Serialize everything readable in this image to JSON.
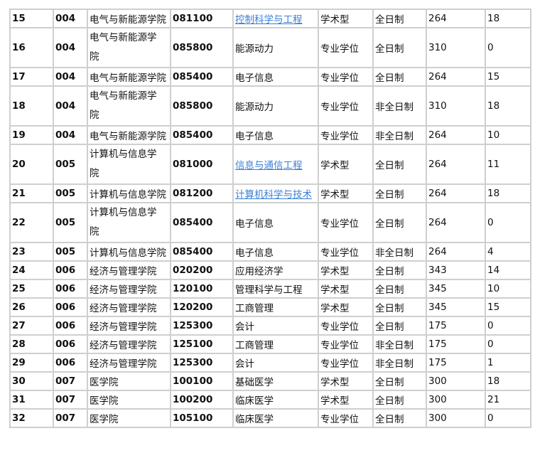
{
  "rows": [
    [
      "15",
      "004",
      "电气与新能源学院",
      "081100",
      "控制科学与工程",
      "学术型",
      "全日制",
      "264",
      "18",
      true
    ],
    [
      "16",
      "004",
      "电气与新能源学院",
      "085800",
      "能源动力",
      "专业学位",
      "全日制",
      "310",
      "0",
      false
    ],
    [
      "17",
      "004",
      "电气与新能源学院",
      "085400",
      "电子信息",
      "专业学位",
      "全日制",
      "264",
      "15",
      false
    ],
    [
      "18",
      "004",
      "电气与新能源学院",
      "085800",
      "能源动力",
      "专业学位",
      "非全日制",
      "310",
      "18",
      false
    ],
    [
      "19",
      "004",
      "电气与新能源学院",
      "085400",
      "电子信息",
      "专业学位",
      "非全日制",
      "264",
      "10",
      false
    ],
    [
      "20",
      "005",
      "计算机与信息学院",
      "081000",
      "信息与通信工程",
      "学术型",
      "全日制",
      "264",
      "11",
      true
    ],
    [
      "21",
      "005",
      "计算机与信息学院",
      "081200",
      "计算机科学与技术",
      "学术型",
      "全日制",
      "264",
      "18",
      true
    ],
    [
      "22",
      "005",
      "计算机与信息学院",
      "085400",
      "电子信息",
      "专业学位",
      "全日制",
      "264",
      "0",
      false
    ],
    [
      "23",
      "005",
      "计算机与信息学院",
      "085400",
      "电子信息",
      "专业学位",
      "非全日制",
      "264",
      "4",
      false
    ],
    [
      "24",
      "006",
      "经济与管理学院",
      "020200",
      "应用经济学",
      "学术型",
      "全日制",
      "343",
      "14",
      false
    ],
    [
      "25",
      "006",
      "经济与管理学院",
      "120100",
      "管理科学与工程",
      "学术型",
      "全日制",
      "345",
      "10",
      false
    ],
    [
      "26",
      "006",
      "经济与管理学院",
      "120200",
      "工商管理",
      "学术型",
      "全日制",
      "345",
      "15",
      false
    ],
    [
      "27",
      "006",
      "经济与管理学院",
      "125300",
      "会计",
      "专业学位",
      "全日制",
      "175",
      "0",
      false
    ],
    [
      "28",
      "006",
      "经济与管理学院",
      "125100",
      "工商管理",
      "专业学位",
      "非全日制",
      "175",
      "0",
      false
    ],
    [
      "29",
      "006",
      "经济与管理学院",
      "125300",
      "会计",
      "专业学位",
      "非全日制",
      "175",
      "1",
      false
    ],
    [
      "30",
      "007",
      "医学院",
      "100100",
      "基础医学",
      "学术型",
      "全日制",
      "300",
      "18",
      false
    ],
    [
      "31",
      "007",
      "医学院",
      "100200",
      "临床医学",
      "学术型",
      "全日制",
      "300",
      "21",
      false
    ],
    [
      "32",
      "007",
      "医学院",
      "105100",
      "临床医学",
      "专业学位",
      "全日制",
      "300",
      "0",
      false
    ]
  ],
  "colors": {
    "link": "#3b7fd4",
    "border": "#cfcfcf"
  }
}
